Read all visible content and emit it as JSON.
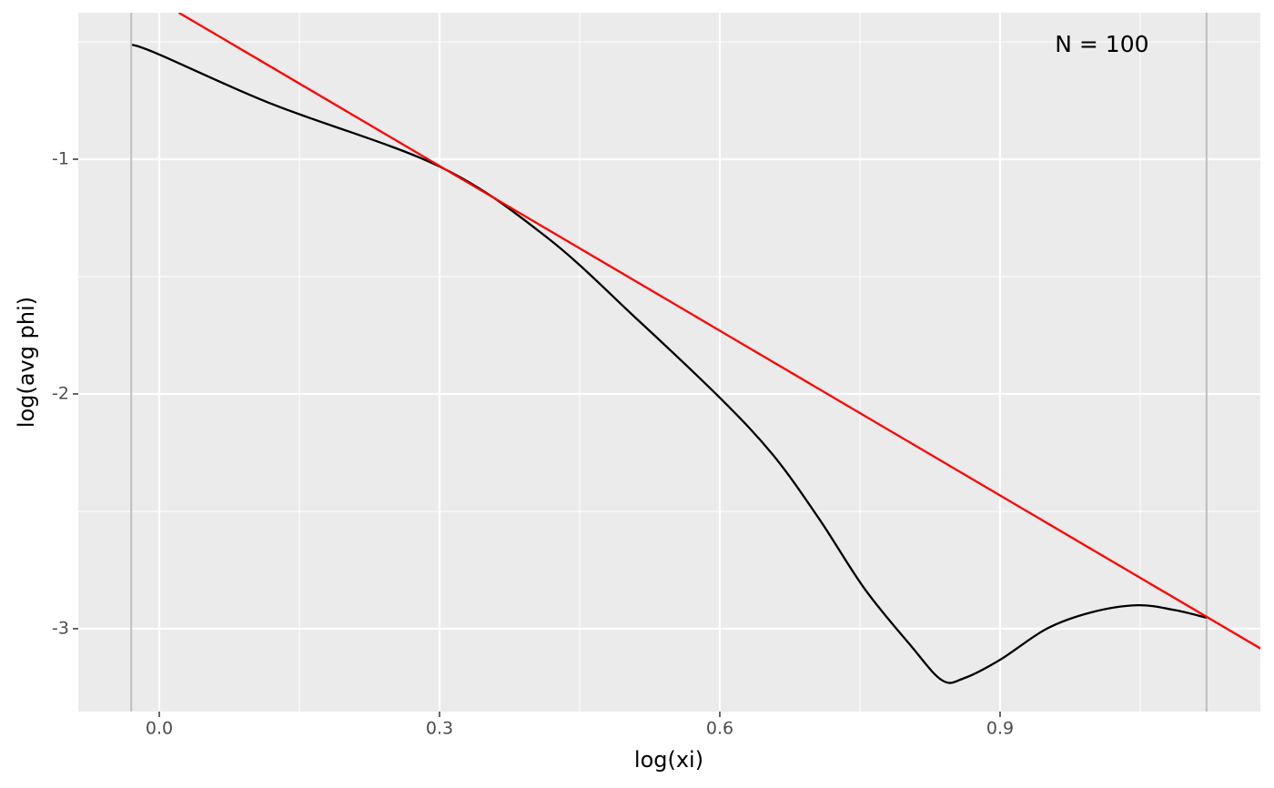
{
  "chart_data": {
    "type": "line",
    "x_label": "log(xi)",
    "y_label": "log(avg phi)",
    "xlim": [
      -0.0867,
      1.1786
    ],
    "ylim": [
      -3.353,
      -0.376
    ],
    "xticks": [
      {
        "value": 0,
        "label": "0.0"
      },
      0.3,
      0.6,
      0.9
    ],
    "yticks": [
      -1,
      -2,
      -3
    ],
    "x_minor_breaks": [
      0.15,
      0.45,
      0.75,
      1.05
    ],
    "y_minor_breaks": [
      -0.5,
      -1.5,
      -2.5
    ],
    "grid": true,
    "vlines": {
      "color": "#bebebe",
      "x": [
        -0.03,
        1.121
      ]
    },
    "series": [
      {
        "color": "#000000",
        "x": [
          -0.029,
          0,
          0.122,
          0.3,
          0.414,
          0.511,
          0.6,
          0.657,
          0.706,
          0.755,
          0.804,
          0.838,
          0.862,
          0.901,
          0.95,
          0.998,
          1.047,
          1.086,
          1.121
        ],
        "values": [
          -0.512,
          -0.554,
          -0.767,
          -1.031,
          -1.33,
          -1.68,
          -2.016,
          -2.26,
          -2.53,
          -2.83,
          -3.07,
          -3.22,
          -3.21,
          -3.13,
          -3.0,
          -2.93,
          -2.9,
          -2.92,
          -2.953
        ]
      },
      {
        "color": "#ff0000",
        "x": [
          0.021,
          1.179
        ],
        "values": [
          -0.376,
          -3.085
        ]
      }
    ],
    "annotations": [
      {
        "text": "N = 100",
        "x": 1.009,
        "y": -0.516
      }
    ]
  }
}
